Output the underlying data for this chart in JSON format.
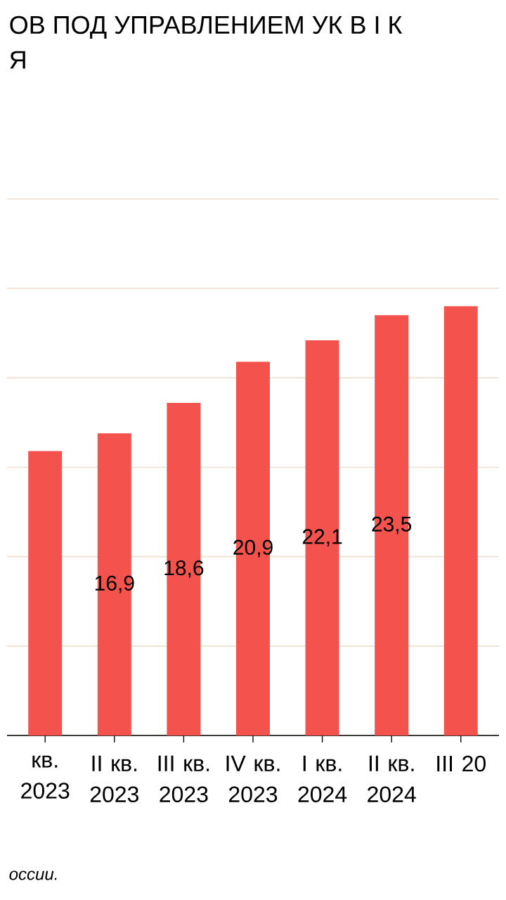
{
  "chart_data": {
    "type": "bar",
    "title": "ОВ ПОД УПРАВЛЕНИЕМ УК В I К",
    "subtitle": "Я",
    "categories": [
      "кв. 2023",
      "II кв. 2023",
      "III кв. 2023",
      "IV кв. 2023",
      "I кв. 2024",
      "II кв. 2024",
      "III 20"
    ],
    "values": [
      15.9,
      16.9,
      18.6,
      20.9,
      22.1,
      23.5,
      24.0
    ],
    "value_labels": [
      null,
      "16,9",
      "18,6",
      "20,9",
      "22,1",
      "23,5",
      null
    ],
    "color": "#f4524d",
    "ylim": [
      0,
      30
    ],
    "yticks": [
      {
        "value": 0,
        "label": null
      },
      {
        "value": 5,
        "label": null
      },
      {
        "value": 10,
        "label": null
      },
      {
        "value": 15,
        "label": null
      },
      {
        "value": 20,
        "label": null
      },
      {
        "value": 25,
        "label": null
      },
      {
        "value": 30,
        "label": null
      }
    ],
    "grid": "y",
    "tick_labels": "x",
    "annotations": [
      "оссии."
    ]
  }
}
